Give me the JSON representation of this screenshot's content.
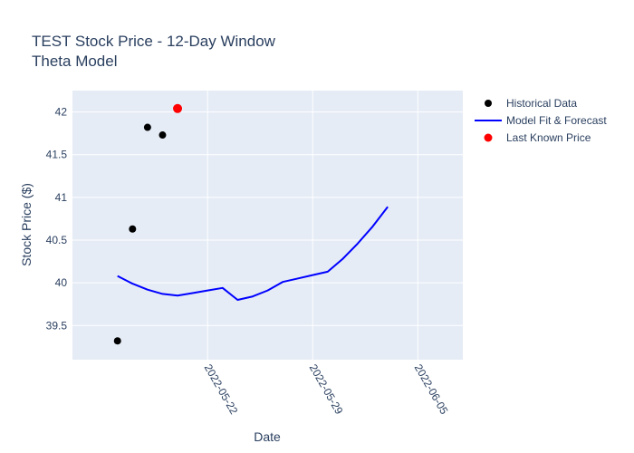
{
  "chart_data": {
    "type": "line",
    "title": "TEST Stock Price - 12-Day Window",
    "subtitle": "Theta Model",
    "xlabel": "Date",
    "ylabel": "Stock Price ($)",
    "xlim": [
      "2022-05-13",
      "2022-06-08"
    ],
    "ylim": [
      39.1,
      42.25
    ],
    "x_ticks": [
      "2022-05-22",
      "2022-05-29",
      "2022-06-05"
    ],
    "y_ticks": [
      39.5,
      40,
      40.5,
      41,
      41.5,
      42
    ],
    "y_tick_labels": [
      "39.5",
      "40",
      "40.5",
      "41",
      "41.5",
      "42"
    ],
    "grid": true,
    "legend_position": "top-right",
    "colors": {
      "historical": "#000000",
      "model": "#0000ff",
      "last_price": "#ff0000",
      "plot_bg": "#e5ecf6",
      "grid": "#ffffff"
    },
    "series": [
      {
        "name": "Historical Data",
        "type": "scatter",
        "x": [
          "2022-05-16",
          "2022-05-17",
          "2022-05-18",
          "2022-05-19"
        ],
        "y": [
          39.32,
          40.63,
          41.82,
          41.73
        ]
      },
      {
        "name": "Model Fit & Forecast",
        "type": "line",
        "x": [
          "2022-05-16",
          "2022-05-17",
          "2022-05-18",
          "2022-05-19",
          "2022-05-20",
          "2022-05-21",
          "2022-05-22",
          "2022-05-23",
          "2022-05-24",
          "2022-05-25",
          "2022-05-26",
          "2022-05-27",
          "2022-05-28",
          "2022-05-29",
          "2022-05-30",
          "2022-05-31",
          "2022-06-01",
          "2022-06-02",
          "2022-06-03"
        ],
        "y": [
          40.08,
          39.99,
          39.92,
          39.87,
          39.85,
          39.88,
          39.91,
          39.94,
          39.8,
          39.84,
          39.91,
          40.01,
          40.05,
          40.09,
          40.13,
          40.28,
          40.46,
          40.66,
          40.89
        ]
      },
      {
        "name": "Last Known Price",
        "type": "scatter",
        "x": [
          "2022-05-20"
        ],
        "y": [
          42.04
        ]
      }
    ]
  }
}
